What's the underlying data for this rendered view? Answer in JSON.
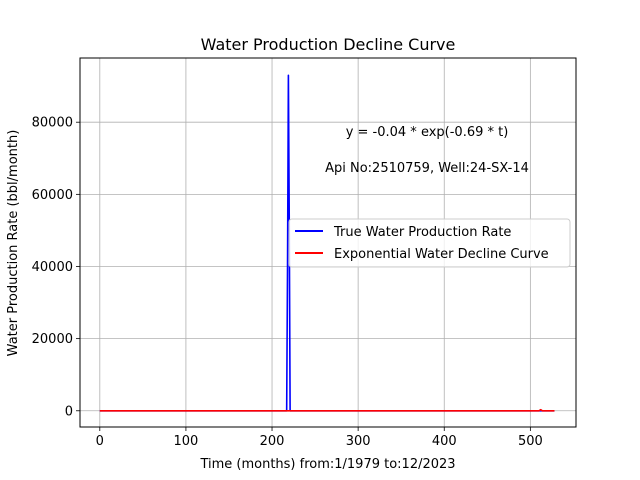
{
  "chart_data": {
    "type": "line",
    "title": "Water Production Decline Curve",
    "xlabel": "Time (months) from:1/1979 to:12/2023",
    "ylabel": "Water Production Rate (bbl/month)",
    "xlim": [
      -23,
      553
    ],
    "ylim": [
      -4500,
      97800
    ],
    "xticks": [
      0,
      100,
      200,
      300,
      400,
      500
    ],
    "yticks": [
      0,
      20000,
      40000,
      60000,
      80000
    ],
    "grid": true,
    "legend_position": "center-right",
    "annotations": [
      "y = -0.04 * exp(-0.69 * t)",
      "Api No:2510759, Well:24-SX-14"
    ],
    "series": [
      {
        "name": "True Water Production Rate",
        "color": "#0000ff",
        "x": [
          0,
          100,
          200,
          216,
          217,
          218,
          219,
          220,
          221,
          222,
          300,
          400,
          500,
          528
        ],
        "y": [
          0,
          0,
          0,
          0,
          0,
          40000,
          93000,
          53000,
          0,
          0,
          0,
          0,
          0,
          0
        ]
      },
      {
        "name": "Exponential Water Decline Curve",
        "color": "#ff0000",
        "x": [
          0,
          100,
          200,
          300,
          400,
          500,
          510,
          512,
          514,
          528
        ],
        "y": [
          0,
          0,
          0,
          0,
          0,
          0,
          0,
          300,
          0,
          0
        ]
      }
    ]
  }
}
